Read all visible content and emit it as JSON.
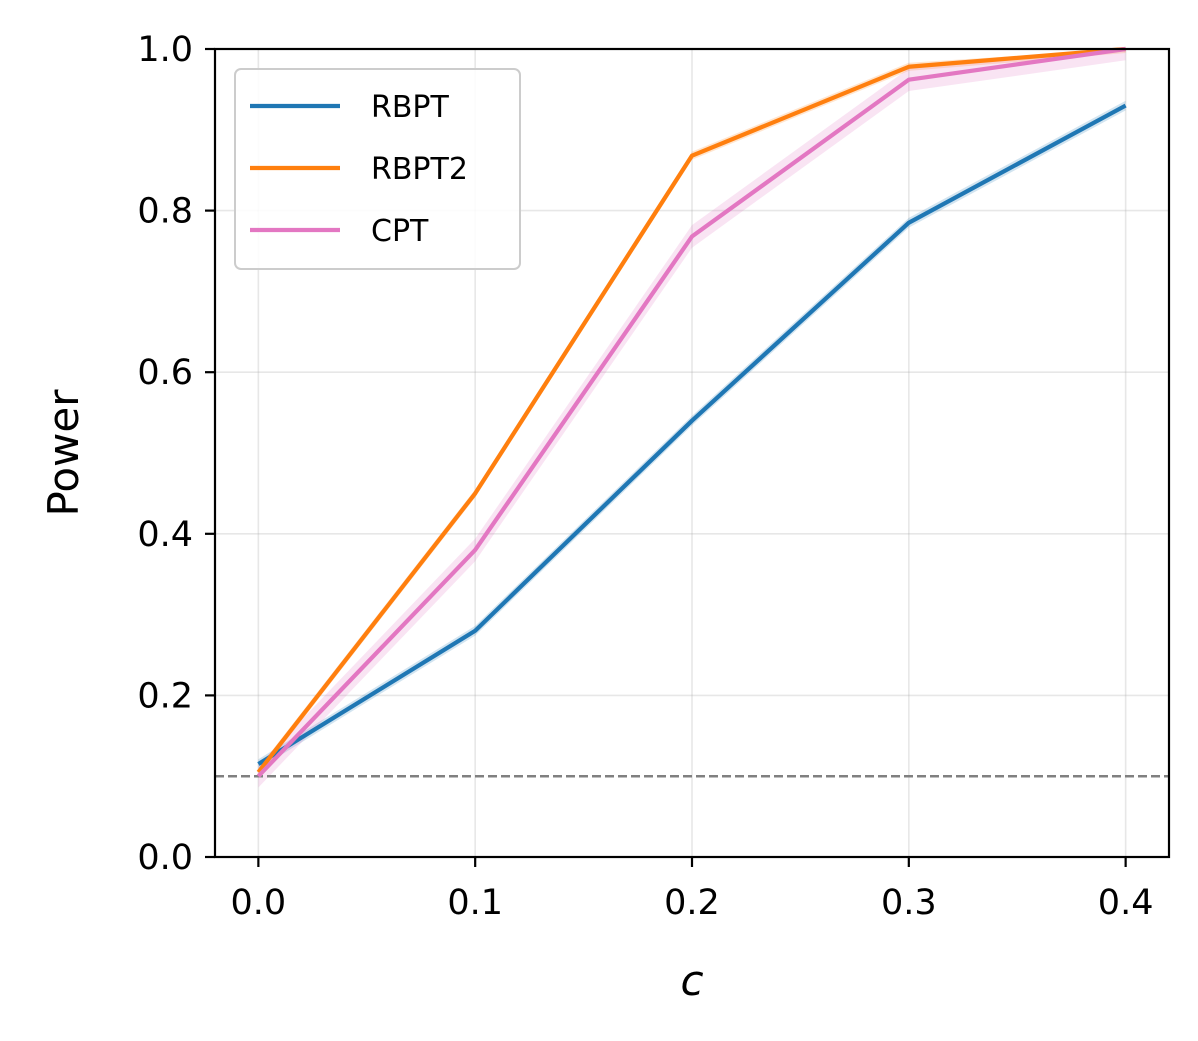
{
  "chart_data": {
    "type": "line",
    "title": "",
    "xlabel": "c",
    "ylabel": "Power",
    "xlim": [
      -0.02,
      0.42
    ],
    "ylim": [
      0.0,
      1.0
    ],
    "x_ticks": [
      0.0,
      0.1,
      0.2,
      0.3,
      0.4
    ],
    "x_tick_labels": [
      "0.0",
      "0.1",
      "0.2",
      "0.3",
      "0.4"
    ],
    "y_ticks": [
      0.0,
      0.2,
      0.4,
      0.6,
      0.8,
      1.0
    ],
    "y_tick_labels": [
      "0.0",
      "0.2",
      "0.4",
      "0.6",
      "0.8",
      "1.0"
    ],
    "grid": true,
    "legend_position": "top-left",
    "x": [
      0.0,
      0.1,
      0.2,
      0.3,
      0.4
    ],
    "series": [
      {
        "name": "RBPT",
        "color": "#1f77b4",
        "values": [
          0.115,
          0.28,
          0.54,
          0.785,
          0.93
        ],
        "band": 0.006
      },
      {
        "name": "RBPT2",
        "color": "#ff7f0e",
        "values": [
          0.105,
          0.45,
          0.868,
          0.978,
          1.0
        ],
        "band": 0.005
      },
      {
        "name": "CPT",
        "color": "#e377c2",
        "values": [
          0.1,
          0.38,
          0.768,
          0.962,
          1.0
        ],
        "band": 0.014
      }
    ],
    "reference_line": {
      "y": 0.1,
      "style": "dashed",
      "color": "#808080"
    }
  }
}
